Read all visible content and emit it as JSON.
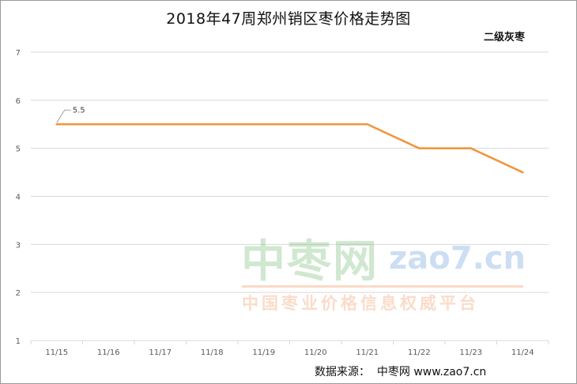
{
  "title": "2018年47周郑州销区枣价格走势图",
  "series_label": "二级灰枣",
  "source_text": "数据来源：  中枣网 www.zao7.cn",
  "watermark": {
    "brand": "中枣网",
    "domain": "zao7.cn",
    "slogan": "中国枣业价格信息权威平台"
  },
  "colors": {
    "line": "#F0963E",
    "grid": "#D9D9D9",
    "axis_text": "#595959"
  },
  "chart_data": {
    "type": "line",
    "title": "2018年47周郑州销区枣价格走势图",
    "categories": [
      "11/15",
      "11/16",
      "11/17",
      "11/18",
      "11/19",
      "11/20",
      "11/21",
      "11/22",
      "11/23",
      "11/24"
    ],
    "series": [
      {
        "name": "二级灰枣",
        "values": [
          5.5,
          5.5,
          5.5,
          5.5,
          5.5,
          5.5,
          5.5,
          5.0,
          5.0,
          4.5
        ]
      }
    ],
    "ylim": [
      1,
      7
    ],
    "yticks": [
      1,
      2,
      3,
      4,
      5,
      6,
      7
    ],
    "grid": true,
    "annotations": [
      {
        "category": "11/15",
        "value": 5.5,
        "text": "5.5"
      }
    ]
  }
}
